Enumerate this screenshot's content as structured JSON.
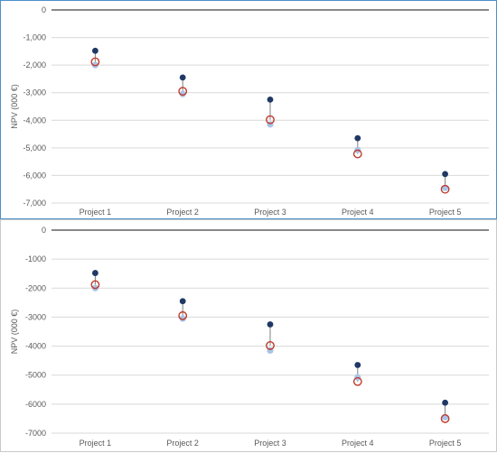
{
  "chart_data": [
    {
      "type": "scatter",
      "ylabel": "NPV (000 €)",
      "ylim": [
        -7000,
        0
      ],
      "yticks": [
        0,
        -1000,
        -2000,
        -3000,
        -4000,
        -5000,
        -6000,
        -7000
      ],
      "ytick_labels": [
        "0",
        "-1,000",
        "-2,000",
        "-3,000",
        "-4,000",
        "-5,000",
        "-6,000",
        "-7,000"
      ],
      "categories": [
        "Project 1",
        "Project 2",
        "Project 3",
        "Project 4",
        "Project 5"
      ],
      "series": [
        {
          "values": [
            -1480,
            -2450,
            -3250,
            -4650,
            -5950
          ],
          "color": "#1f3864",
          "marker": "filled-dot"
        },
        {
          "values": [
            -1880,
            -2950,
            -3980,
            -5220,
            -6500
          ],
          "color": "#c0392b",
          "marker": "open-circle"
        },
        {
          "values": [
            -2000,
            -3050,
            -4150,
            -5080,
            -6450
          ],
          "color": "#a9c4e8",
          "marker": "filled-dot"
        }
      ],
      "grid": true
    },
    {
      "type": "scatter",
      "ylabel": "NPV (000 €)",
      "ylim": [
        -7000,
        0
      ],
      "yticks": [
        0,
        -1000,
        -2000,
        -3000,
        -4000,
        -5000,
        -6000,
        -7000
      ],
      "ytick_labels": [
        "0",
        "-1000",
        "-2000",
        "-3000",
        "-4000",
        "-5000",
        "-6000",
        "-7000"
      ],
      "categories": [
        "Project 1",
        "Project 2",
        "Project 3",
        "Project 4",
        "Project 5"
      ],
      "series": [
        {
          "values": [
            -1480,
            -2450,
            -3250,
            -4650,
            -5950
          ],
          "color": "#1f3864",
          "marker": "filled-dot"
        },
        {
          "values": [
            -1880,
            -2950,
            -3980,
            -5220,
            -6500
          ],
          "color": "#c0392b",
          "marker": "open-circle"
        },
        {
          "values": [
            -2000,
            -3050,
            -4150,
            -5080,
            -6450
          ],
          "color": "#a9c4e8",
          "marker": "filled-dot"
        }
      ],
      "grid": true
    }
  ]
}
